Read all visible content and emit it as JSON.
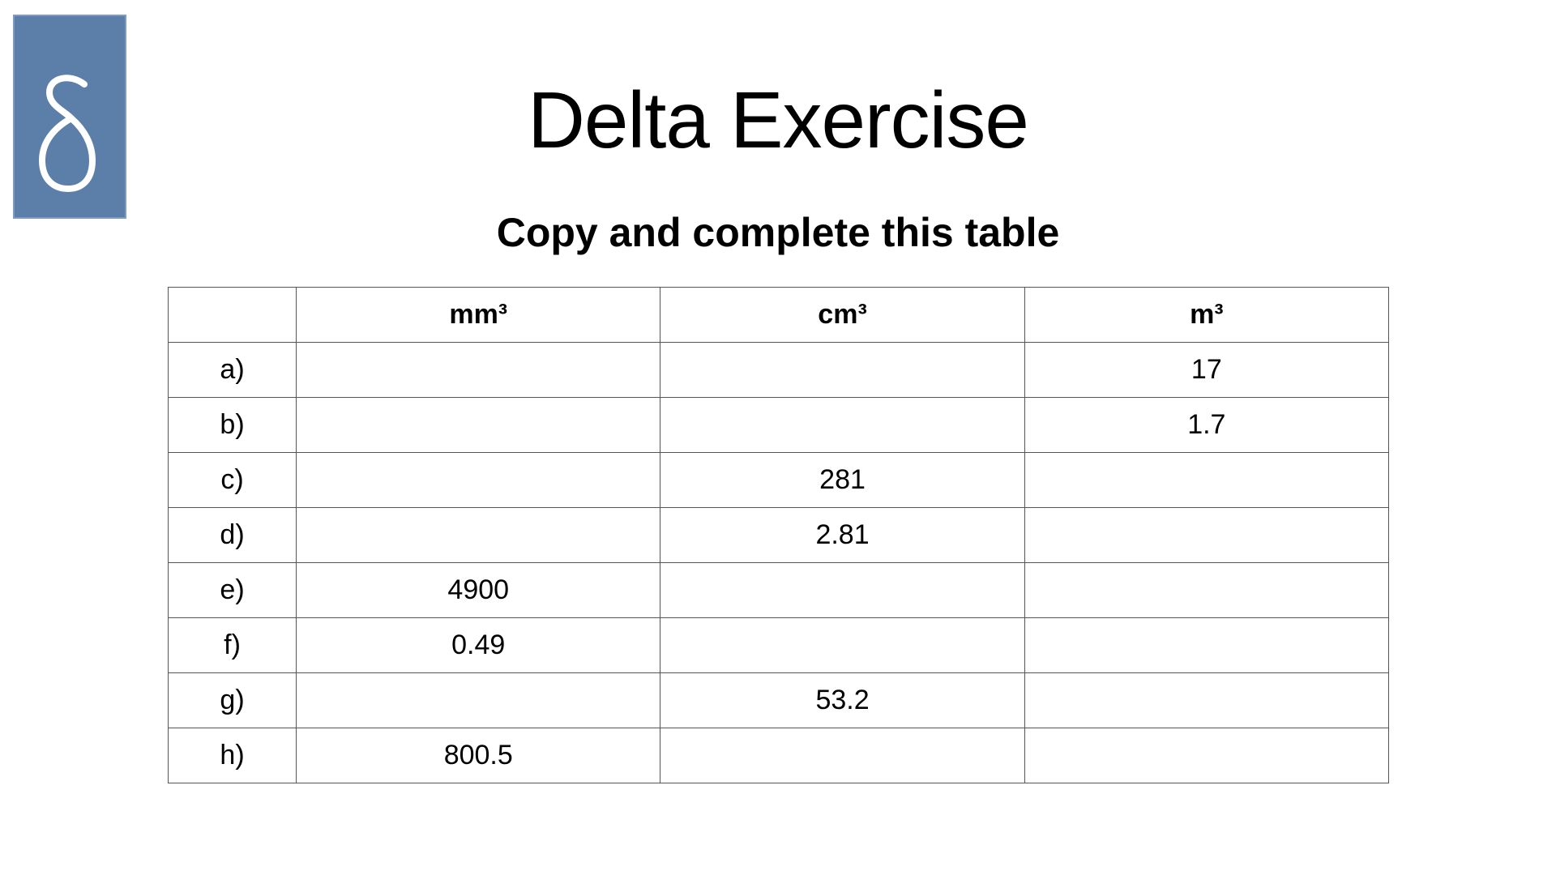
{
  "logo": {
    "glyph": "δ",
    "color": "#5b7fa8"
  },
  "title": "Delta Exercise",
  "subtitle": "Copy and complete this table",
  "table": {
    "headers": [
      "",
      "mm³",
      "cm³",
      "m³"
    ],
    "rows": [
      [
        "a)",
        "",
        "",
        "17"
      ],
      [
        "b)",
        "",
        "",
        "1.7"
      ],
      [
        "c)",
        "",
        "281",
        ""
      ],
      [
        "d)",
        "",
        "2.81",
        ""
      ],
      [
        "e)",
        "4900",
        "",
        ""
      ],
      [
        "f)",
        "0.49",
        "",
        ""
      ],
      [
        "g)",
        "",
        "53.2",
        ""
      ],
      [
        "h)",
        "800.5",
        "",
        ""
      ]
    ]
  }
}
